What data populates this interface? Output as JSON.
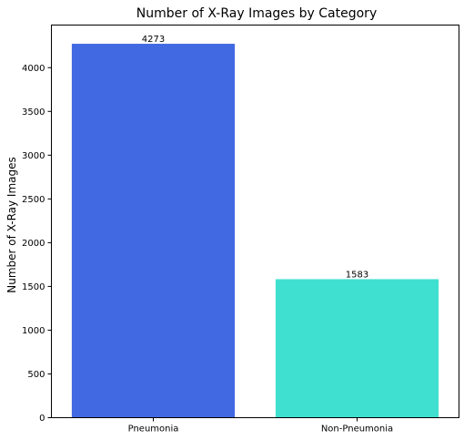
{
  "chart_data": {
    "type": "bar",
    "title": "Number of X-Ray Images by Category",
    "xlabel": "",
    "ylabel": "Number of X-Ray Images",
    "categories": [
      "Pneumonia",
      "Non-Pneumonia"
    ],
    "values": [
      4273,
      1583
    ],
    "data_labels": [
      "4273",
      "1583"
    ],
    "ylim": [
      0,
      4487
    ],
    "yticks": [
      0,
      500,
      1000,
      1500,
      2000,
      2500,
      3000,
      3500,
      4000
    ],
    "colors": [
      "#4169e1",
      "#40e0d0"
    ],
    "grid": false,
    "legend": "none"
  }
}
